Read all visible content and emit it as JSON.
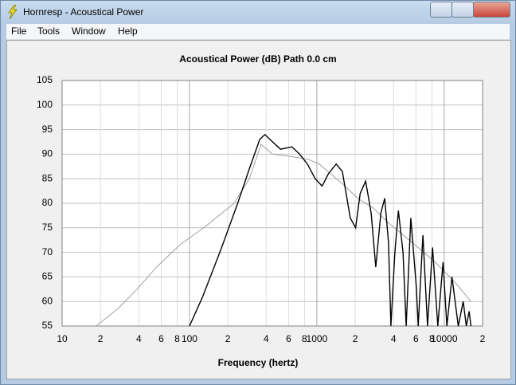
{
  "window": {
    "title": "Hornresp - Acoustical Power",
    "menu": [
      "File",
      "Tools",
      "Window",
      "Help"
    ]
  },
  "chart_data": {
    "type": "line",
    "title": "Acoustical Power (dB)   Path 0.0 cm",
    "x_label": "Frequency (hertz)",
    "xscale": "log",
    "xlim": [
      10,
      20000
    ],
    "ylim": [
      55,
      105
    ],
    "grid": true,
    "xticks": [
      10,
      {
        "value": 20,
        "label": "2"
      },
      {
        "value": 40,
        "label": "4"
      },
      {
        "value": 60,
        "label": "6"
      },
      {
        "value": 80,
        "label": "8"
      },
      100,
      {
        "value": 200,
        "label": "2"
      },
      {
        "value": 400,
        "label": "4"
      },
      {
        "value": 600,
        "label": "6"
      },
      {
        "value": 800,
        "label": "8"
      },
      1000,
      {
        "value": 2000,
        "label": "2"
      },
      {
        "value": 4000,
        "label": "4"
      },
      {
        "value": 6000,
        "label": "6"
      },
      {
        "value": 8000,
        "label": "8"
      },
      10000,
      {
        "value": 20000,
        "label": "2"
      }
    ],
    "yticks": [
      55,
      60,
      65,
      70,
      75,
      80,
      85,
      90,
      95,
      100,
      105
    ],
    "series": [
      {
        "color": "#000000",
        "x": [
          100,
          127,
          179,
          239,
          295,
          356,
          391,
          449,
          519,
          637,
          733,
          843,
          970,
          1101,
          1232,
          1418,
          1585,
          1830,
          2015,
          2189,
          2417,
          2670,
          2900,
          3180,
          3410,
          3655,
          3815,
          4100,
          4370,
          4750,
          5030,
          5470,
          6040,
          6250,
          6800,
          7400,
          8100,
          8900,
          9800,
          10500,
          11500,
          12900,
          14100,
          14900,
          15700,
          16200
        ],
        "values": [
          55,
          61,
          71,
          80,
          87,
          93,
          94,
          92.5,
          91,
          91.5,
          90,
          88,
          85,
          83.5,
          86,
          88,
          86.5,
          77,
          75,
          82,
          84.5,
          78,
          67,
          78,
          81,
          72,
          55,
          70,
          78.5,
          70,
          55,
          77,
          63,
          55,
          73.5,
          55,
          71,
          55,
          68,
          55,
          65,
          55,
          60,
          55,
          58,
          55
        ]
      },
      {
        "color": "#a0a0a0",
        "x": [
          18.5,
          27.4,
          38.8,
          55.1,
          84,
          137,
          224,
          295,
          365,
          449,
          639,
          843,
          1043,
          1285,
          1585,
          2098,
          2777,
          3655,
          5600,
          8500,
          12080,
          16200
        ],
        "values": [
          55,
          58.5,
          62.5,
          67,
          71.5,
          75.5,
          80,
          85,
          92,
          90,
          89.5,
          89,
          88,
          86,
          84,
          81,
          79,
          76,
          72,
          68,
          64,
          60
        ]
      }
    ]
  }
}
